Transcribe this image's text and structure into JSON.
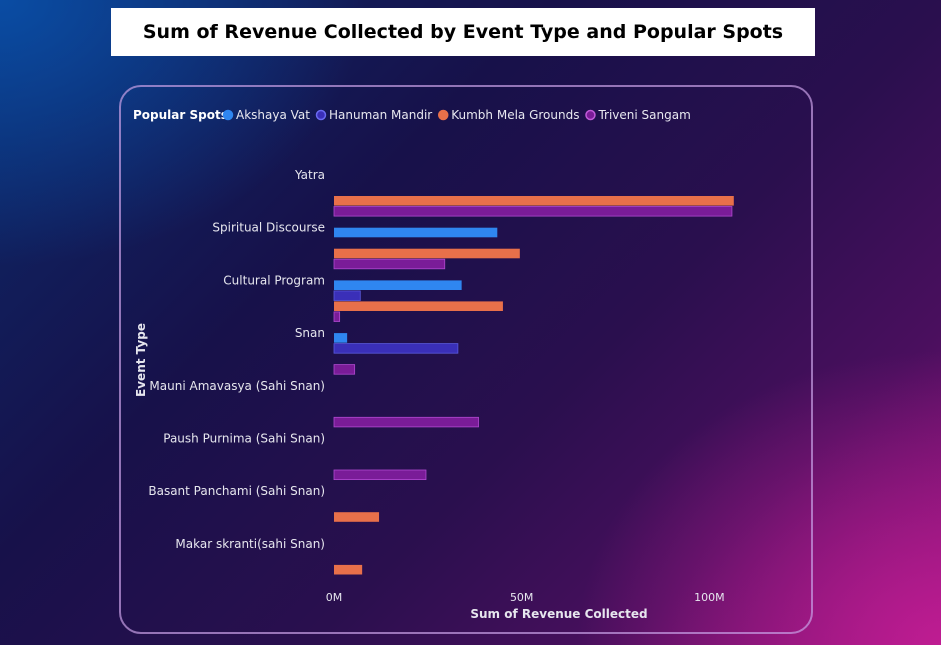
{
  "chart_data": {
    "type": "bar",
    "orientation": "horizontal",
    "title": "Sum of Revenue Collected by Event Type and Popular Spots",
    "xlabel": "Sum of Revenue Collected",
    "ylabel": "Event Type",
    "legend_title": "Popular Spots",
    "legend_position": "top-left",
    "xlim": [
      0,
      120
    ],
    "x_unit": "M",
    "x_ticks": [
      0,
      50,
      100
    ],
    "x_tick_labels": [
      "0M",
      "50M",
      "100M"
    ],
    "categories": [
      "Yatra",
      "Spiritual Discourse",
      "Cultural Program",
      "Snan",
      "Mauni Amavasya (Sahi Snan)",
      "Paush Purnima (Sahi Snan)",
      "Basant Panchami (Sahi Snan)",
      "Makar skranti(sahi Snan)"
    ],
    "series": [
      {
        "name": "Akshaya Vat",
        "color": "#2f86f0",
        "values": [
          null,
          43.5,
          34,
          3.5,
          null,
          null,
          null,
          null
        ]
      },
      {
        "name": "Hanuman Mandir",
        "color": "#3a2fb8",
        "values": [
          null,
          null,
          7,
          33,
          null,
          null,
          null,
          null
        ]
      },
      {
        "name": "Kumbh Mela Grounds",
        "color": "#e8704a",
        "values": [
          106.5,
          49.5,
          45,
          null,
          null,
          null,
          12,
          7.5
        ]
      },
      {
        "name": "Triveni Sangam",
        "color": "#7a1c98",
        "values": [
          106,
          29.5,
          1.5,
          5.5,
          38.5,
          24.5,
          null,
          null
        ]
      }
    ],
    "grid": false
  }
}
